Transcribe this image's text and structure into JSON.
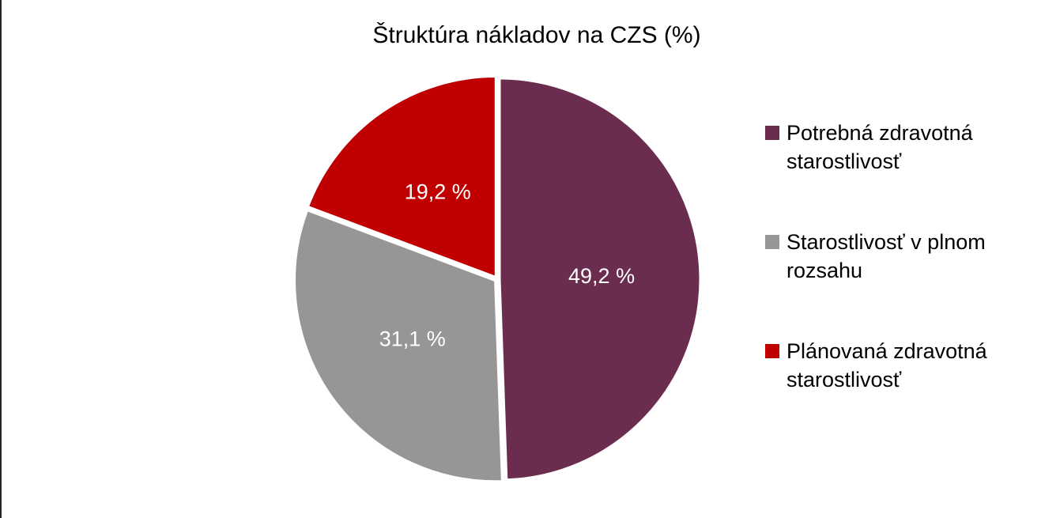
{
  "chart_data": {
    "type": "pie",
    "title": "Štruktúra nákladov na CZS (%)",
    "categories": [
      "Potrebná zdravotná starostlivosť",
      "Starostlivosť v plnom rozsahu",
      "Plánovaná zdravotná starostlivosť"
    ],
    "values": [
      49.2,
      31.1,
      19.2
    ],
    "value_labels": [
      "49,2 %",
      "31,1 %",
      "19,2 %"
    ],
    "colors": [
      "#6b2d4f",
      "#969696",
      "#c00000"
    ],
    "legend": "right"
  }
}
